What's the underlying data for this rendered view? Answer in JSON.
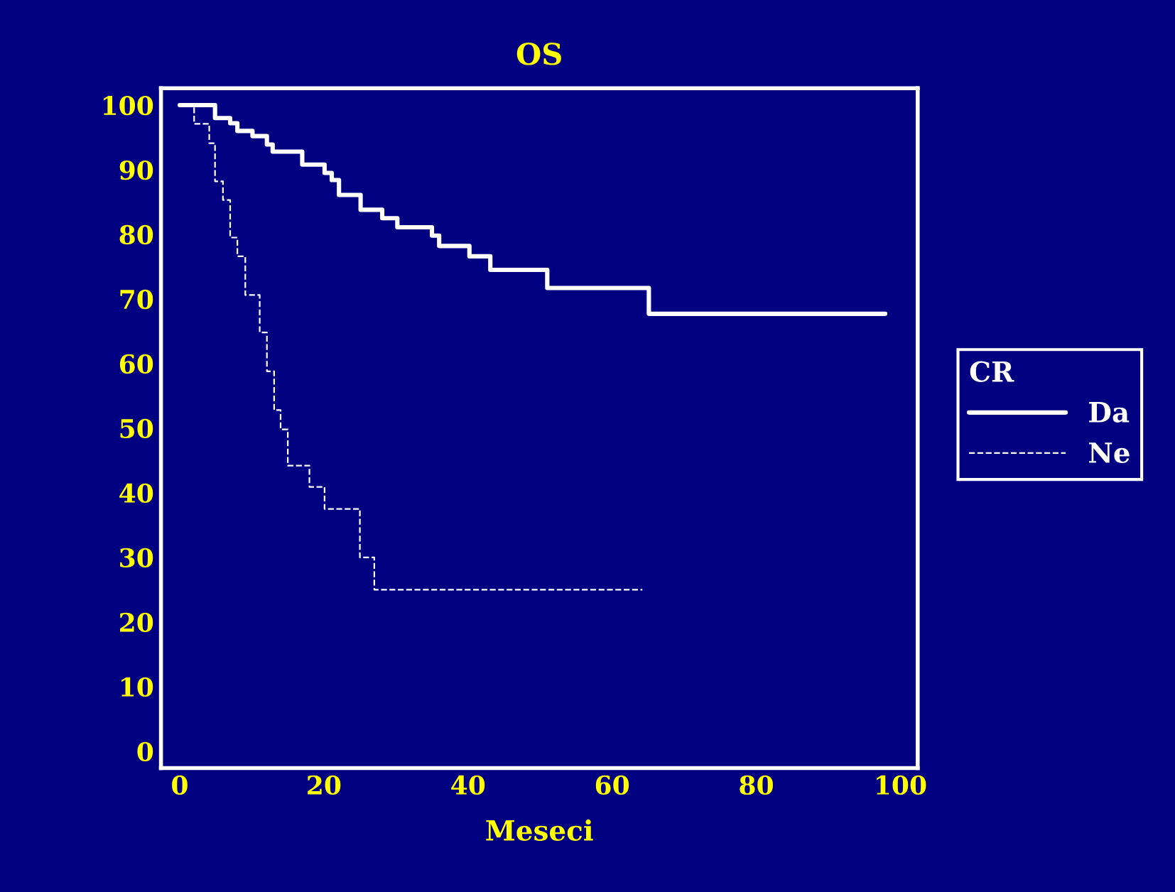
{
  "chart_data": {
    "type": "step",
    "title": "OS",
    "xlabel": "Meseci",
    "legend_title": "CR",
    "xlim": [
      -2.6,
      102.4
    ],
    "ylim": [
      -2.6,
      102.6
    ],
    "xticks": [
      0,
      20,
      40,
      60,
      80,
      100
    ],
    "yticks": [
      0,
      10,
      20,
      30,
      40,
      50,
      60,
      70,
      80,
      90,
      100
    ],
    "grid": false,
    "legend": "right",
    "series": [
      {
        "name": "Da",
        "color": "#ffffff",
        "line_style": "solid",
        "x": [
          0,
          4.9,
          7.0,
          8.0,
          10.1,
          12.1,
          12.9,
          17.0,
          20.1,
          21.1,
          22.1,
          25.1,
          28.1,
          30.2,
          35.0,
          36.0,
          40.2,
          43.1,
          51.0,
          65.1,
          97.9
        ],
        "values": [
          100,
          98.0,
          97.2,
          96.0,
          95.2,
          93.9,
          92.8,
          90.8,
          89.5,
          88.4,
          86.1,
          83.8,
          82.5,
          81.1,
          79.8,
          78.2,
          76.6,
          74.5,
          71.7,
          67.7,
          67.7
        ]
      },
      {
        "name": "Ne",
        "color": "#ffffff",
        "line_style": "dashed",
        "x": [
          0,
          2.0,
          4.1,
          4.9,
          6.0,
          7.0,
          8.0,
          9.1,
          11.1,
          12.1,
          13.1,
          14.0,
          15.0,
          18.0,
          20.1,
          25.0,
          27.0,
          64.2
        ],
        "values": [
          100,
          97.1,
          94.1,
          88.2,
          85.3,
          79.5,
          76.6,
          70.6,
          64.8,
          58.8,
          52.8,
          49.8,
          44.2,
          40.9,
          37.5,
          30.0,
          25.0,
          25.0
        ]
      }
    ]
  }
}
